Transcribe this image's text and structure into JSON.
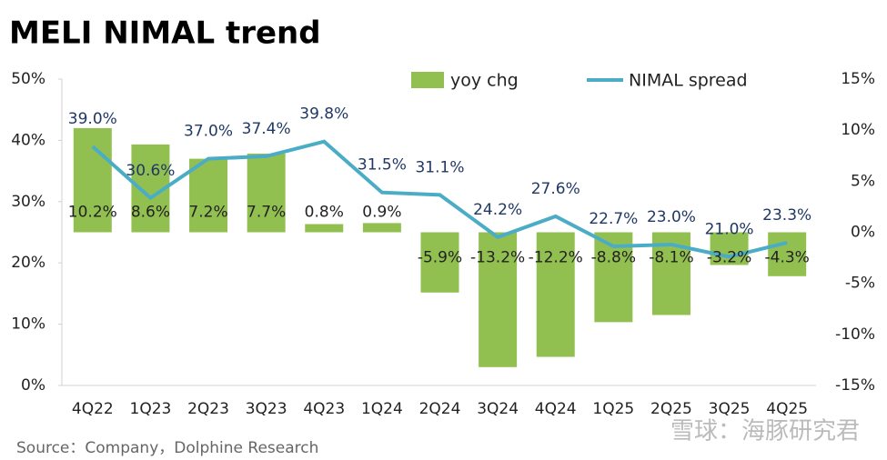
{
  "chart_data": {
    "type": "bar_line",
    "title": "MELI NIMAL trend",
    "source": "Source：Company，Dolphine Research",
    "watermark": "雪球：海豚研究君",
    "categories": [
      "4Q22",
      "1Q23",
      "2Q23",
      "3Q23",
      "4Q23",
      "1Q24",
      "2Q24",
      "3Q24",
      "4Q24",
      "1Q25",
      "2Q25",
      "3Q25",
      "4Q25"
    ],
    "series": [
      {
        "name": "yoy chg",
        "type": "bar",
        "axis": "y2",
        "color": "#92c050",
        "values": [
          10.2,
          8.6,
          7.2,
          7.7,
          0.8,
          0.9,
          -5.9,
          -13.2,
          -12.2,
          -8.8,
          -8.1,
          -3.2,
          -4.3
        ],
        "value_labels": [
          "10.2%",
          "8.6%",
          "7.2%",
          "7.7%",
          "0.8%",
          "0.9%",
          "-5.9%",
          "-13.2%",
          "-12.2%",
          "-8.8%",
          "-8.1%",
          "-3.2%",
          "-4.3%"
        ]
      },
      {
        "name": "NIMAL spread",
        "type": "line",
        "axis": "y",
        "color": "#4bacc6",
        "values": [
          39.0,
          30.6,
          37.0,
          37.4,
          39.8,
          31.5,
          31.1,
          24.2,
          27.6,
          22.7,
          23.0,
          21.0,
          23.3
        ],
        "value_labels": [
          "39.0%",
          "30.6%",
          "37.0%",
          "37.4%",
          "39.8%",
          "31.5%",
          "31.1%",
          "24.2%",
          "27.6%",
          "22.7%",
          "23.0%",
          "21.0%",
          "23.3%"
        ]
      }
    ],
    "ylim": [
      0,
      50
    ],
    "yticks": [
      {
        "value": 0,
        "label": "0%"
      },
      {
        "value": 10,
        "label": "10%"
      },
      {
        "value": 20,
        "label": "20%"
      },
      {
        "value": 30,
        "label": "30%"
      },
      {
        "value": 40,
        "label": "40%"
      },
      {
        "value": 50,
        "label": "50%"
      }
    ],
    "y2lim": [
      -15,
      15
    ],
    "y2ticks": [
      {
        "value": -15,
        "label": "-15%"
      },
      {
        "value": -10,
        "label": "-10%"
      },
      {
        "value": -5,
        "label": "-5%"
      },
      {
        "value": 0,
        "label": "0%"
      },
      {
        "value": 5,
        "label": "5%"
      },
      {
        "value": 10,
        "label": "10%"
      },
      {
        "value": 15,
        "label": "15%"
      }
    ],
    "legend": "top"
  }
}
